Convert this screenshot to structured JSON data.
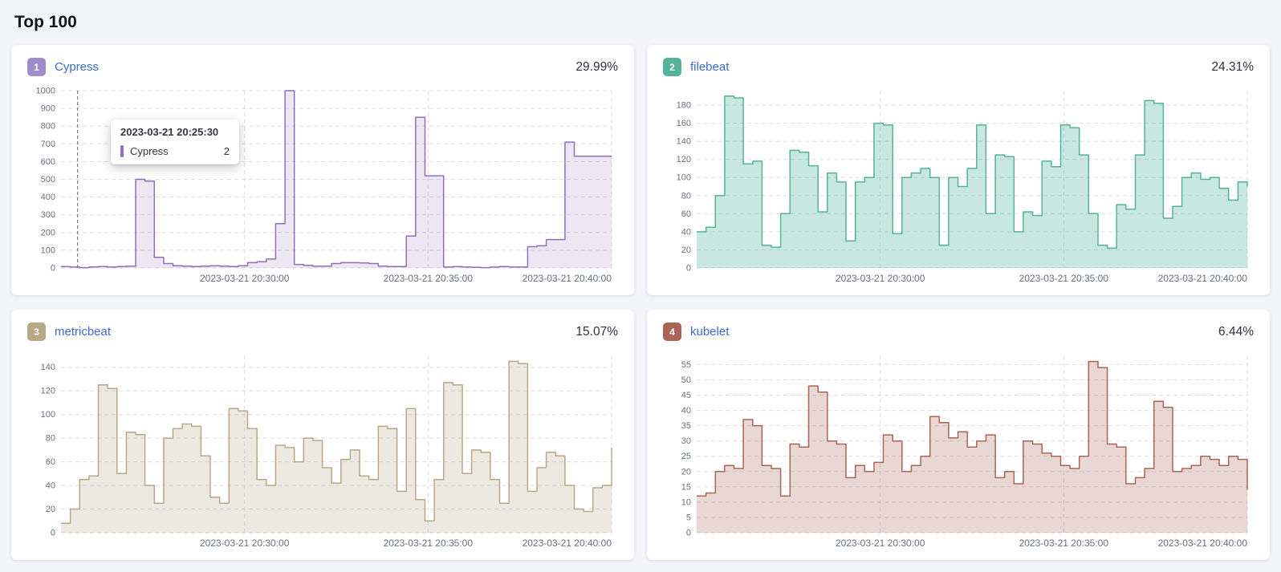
{
  "page": {
    "title": "Top 100"
  },
  "cards": [
    {
      "rank": "1",
      "name": "Cypress",
      "percent": "29.99%",
      "badge_color": "#a08cc8",
      "tooltip": {
        "time": "2023-03-21 20:25:30",
        "series": "Cypress",
        "value": "2"
      }
    },
    {
      "rank": "2",
      "name": "filebeat",
      "percent": "24.31%",
      "badge_color": "#54b399"
    },
    {
      "rank": "3",
      "name": "metricbeat",
      "percent": "15.07%",
      "badge_color": "#b9a888"
    },
    {
      "rank": "4",
      "name": "kubelet",
      "percent": "6.44%",
      "badge_color": "#aa6556"
    }
  ],
  "chart_data": [
    {
      "type": "area",
      "title": "Cypress",
      "color": "#9170b8",
      "fill_opacity": 0.17,
      "y_axis_max": 1000,
      "y_tick_step": 100,
      "y_scale_max": 1000,
      "x_labels": [
        "2023-03-21 20:30:00",
        "2023-03-21 20:35:00",
        "2023-03-21 20:40:00"
      ],
      "cursor_frac": 0.03,
      "tooltip": {
        "time": "2023-03-21 20:25:30",
        "series": "Cypress",
        "value": 2
      },
      "values": [
        8,
        5,
        2,
        6,
        8,
        5,
        8,
        10,
        500,
        490,
        60,
        25,
        12,
        10,
        8,
        10,
        12,
        10,
        8,
        12,
        30,
        35,
        50,
        250,
        1000,
        20,
        15,
        10,
        10,
        25,
        30,
        30,
        28,
        25,
        10,
        8,
        8,
        180,
        850,
        520,
        520,
        5,
        8,
        5,
        4,
        2,
        5,
        8,
        6,
        5,
        120,
        125,
        160,
        160,
        710,
        630,
        630,
        630,
        630,
        630
      ]
    },
    {
      "type": "area",
      "title": "filebeat",
      "color": "#54b399",
      "fill_opacity": 0.32,
      "y_axis_max": 180,
      "y_tick_step": 20,
      "y_scale_max": 196,
      "x_labels": [
        "2023-03-21 20:30:00",
        "2023-03-21 20:35:00",
        "2023-03-21 20:40:00"
      ],
      "values": [
        40,
        45,
        80,
        190,
        188,
        115,
        118,
        25,
        23,
        60,
        130,
        128,
        113,
        62,
        105,
        95,
        30,
        95,
        100,
        160,
        158,
        38,
        100,
        105,
        110,
        100,
        25,
        100,
        90,
        110,
        158,
        60,
        125,
        123,
        40,
        62,
        58,
        118,
        112,
        158,
        155,
        125,
        60,
        25,
        22,
        70,
        65,
        125,
        185,
        182,
        55,
        68,
        100,
        105,
        98,
        100,
        88,
        75,
        95,
        90
      ]
    },
    {
      "type": "area",
      "title": "metricbeat",
      "color": "#b9a888",
      "fill_opacity": 0.26,
      "y_axis_max": 140,
      "y_tick_step": 20,
      "y_scale_max": 150,
      "x_labels": [
        "2023-03-21 20:30:00",
        "2023-03-21 20:35:00",
        "2023-03-21 20:40:00"
      ],
      "values": [
        8,
        20,
        45,
        48,
        125,
        122,
        50,
        85,
        83,
        40,
        25,
        80,
        88,
        92,
        90,
        65,
        30,
        25,
        105,
        103,
        88,
        45,
        40,
        74,
        72,
        60,
        80,
        78,
        55,
        42,
        62,
        70,
        48,
        45,
        90,
        88,
        35,
        105,
        28,
        10,
        45,
        127,
        125,
        50,
        70,
        68,
        45,
        25,
        145,
        143,
        35,
        55,
        68,
        65,
        40,
        20,
        18,
        38,
        40,
        72
      ]
    },
    {
      "type": "area",
      "title": "kubelet",
      "color": "#aa6556",
      "fill_opacity": 0.26,
      "y_axis_max": 55,
      "y_tick_step": 5,
      "y_scale_max": 58,
      "x_labels": [
        "2023-03-21 20:30:00",
        "2023-03-21 20:35:00",
        "2023-03-21 20:40:00"
      ],
      "values": [
        12,
        13,
        20,
        22,
        21,
        37,
        35,
        22,
        21,
        12,
        29,
        28,
        48,
        46,
        30,
        29,
        18,
        22,
        20,
        23,
        32,
        30,
        20,
        22,
        25,
        38,
        36,
        31,
        33,
        28,
        30,
        32,
        18,
        20,
        16,
        30,
        29,
        26,
        25,
        22,
        21,
        25,
        56,
        54,
        29,
        28,
        16,
        18,
        21,
        43,
        41,
        20,
        21,
        22,
        25,
        24,
        22,
        25,
        24,
        14
      ]
    }
  ]
}
